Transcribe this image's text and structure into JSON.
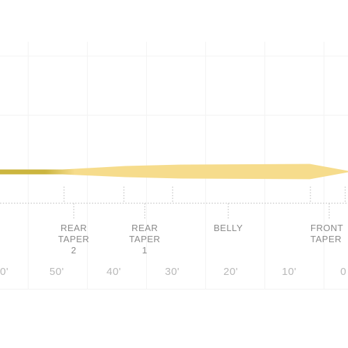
{
  "colors": {
    "line_running": "#cbb53f",
    "line_head": "#f6dc8c",
    "guide": "#c4c4c4",
    "label_text": "#8a8a8a",
    "tick_text": "#b8b8b8"
  },
  "sections": [
    {
      "id": "rear-taper-2",
      "lines": [
        "REAR",
        "TAPER",
        "2"
      ]
    },
    {
      "id": "rear-taper-1",
      "lines": [
        "REAR",
        "TAPER",
        "1"
      ]
    },
    {
      "id": "belly",
      "lines": [
        "BELLY"
      ]
    },
    {
      "id": "front-taper",
      "lines": [
        "FRONT",
        "TAPER"
      ]
    }
  ],
  "ruler": {
    "ticks": [
      "0'",
      "50'",
      "40'",
      "30'",
      "20'",
      "10'",
      "0"
    ]
  }
}
